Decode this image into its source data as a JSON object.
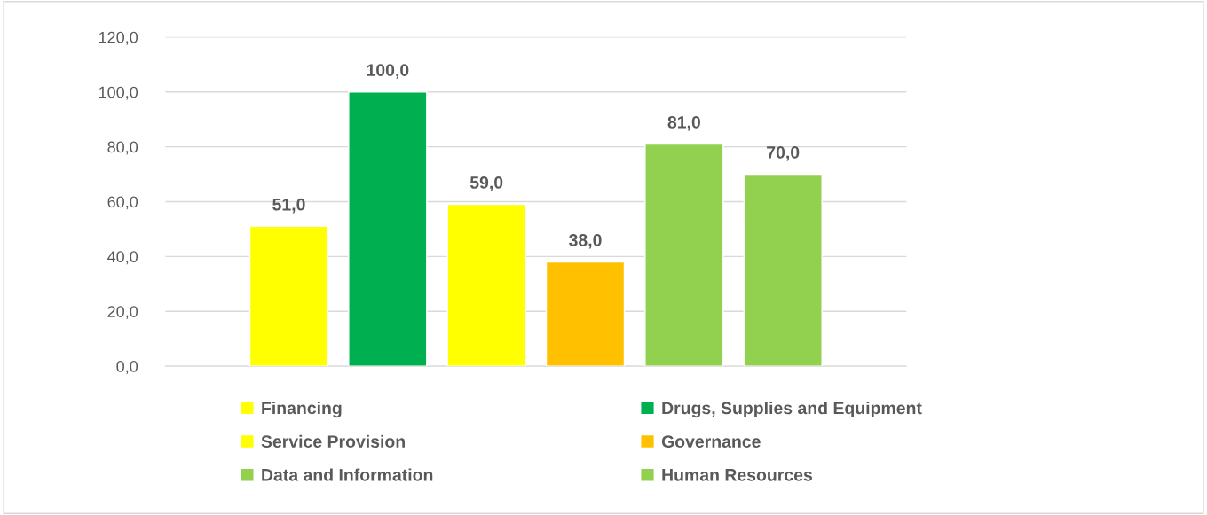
{
  "chart_data": {
    "type": "bar",
    "categories": [
      null
    ],
    "series": [
      {
        "name": "Financing",
        "color": "#ffff00",
        "values": [
          51.0
        ]
      },
      {
        "name": "Drugs, Supplies and Equipment",
        "color": "#00b050",
        "values": [
          100.0
        ]
      },
      {
        "name": "Service Provision",
        "color": "#ffff00",
        "values": [
          59.0
        ]
      },
      {
        "name": "Governance",
        "color": "#ffc000",
        "values": [
          38.0
        ]
      },
      {
        "name": "Data and Information",
        "color": "#92d050",
        "values": [
          81.0
        ]
      },
      {
        "name": "Human Resources",
        "color": "#92d050",
        "values": [
          70.0
        ]
      }
    ],
    "ylim": [
      0,
      120
    ],
    "yticks": [
      {
        "value": 0,
        "label": "0,0"
      },
      {
        "value": 20,
        "label": "20,0"
      },
      {
        "value": 40,
        "label": "40,0"
      },
      {
        "value": 60,
        "label": "60,0"
      },
      {
        "value": 80,
        "label": "80,0"
      },
      {
        "value": 100,
        "label": "100,0"
      },
      {
        "value": 120,
        "label": "120,0"
      }
    ],
    "value_labels": [
      [
        "51,0"
      ],
      [
        "100,0"
      ],
      [
        "59,0"
      ],
      [
        "38,0"
      ],
      [
        "81,0"
      ],
      [
        "70,0"
      ]
    ],
    "grid": "y",
    "legend": "bottom"
  }
}
